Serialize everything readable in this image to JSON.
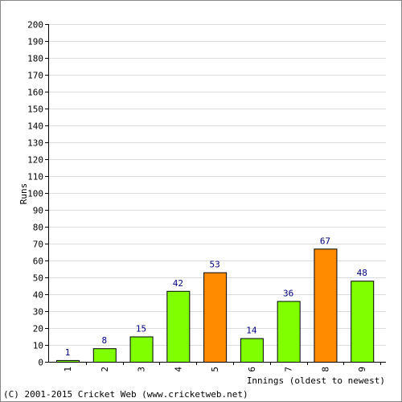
{
  "chart_data": {
    "type": "bar",
    "categories": [
      "1",
      "2",
      "3",
      "4",
      "5",
      "6",
      "7",
      "8",
      "9"
    ],
    "values": [
      1,
      8,
      15,
      42,
      53,
      14,
      36,
      67,
      48
    ],
    "highlight": [
      false,
      false,
      false,
      false,
      true,
      false,
      false,
      true,
      false
    ],
    "title": "",
    "xlabel": "Innings (oldest to newest)",
    "ylabel": "Runs",
    "ylim": [
      0,
      200
    ],
    "ytick_step": 10,
    "grid": true,
    "colors": {
      "bar": "#80ff00",
      "bar_highlight": "#ff8c00",
      "bar_outline": "#000000",
      "data_label": "#000080",
      "grid": "#dddddd",
      "axis": "#000000",
      "frame": "#888888"
    }
  },
  "footer": {
    "copyright": "(C) 2001-2015 Cricket Web (www.cricketweb.net)"
  }
}
